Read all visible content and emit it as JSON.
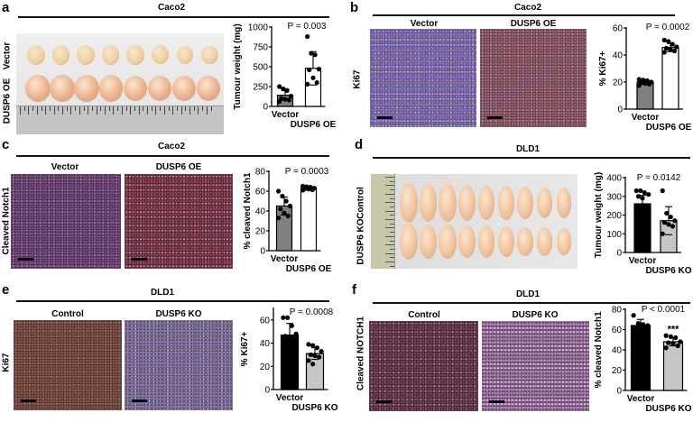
{
  "panels": {
    "a": {
      "label": "a",
      "title": "Caco2",
      "rows": [
        "Vector",
        "DUSP6 OE"
      ]
    },
    "b": {
      "label": "b",
      "title": "Caco2",
      "columns": [
        "Vector",
        "DUSP6 OE"
      ],
      "row": "Ki67"
    },
    "c": {
      "label": "c",
      "title": "Caco2",
      "columns": [
        "Vector",
        "DUSP6 OE"
      ],
      "row": "Cleaved Notch1"
    },
    "d": {
      "label": "d",
      "title": "DLD1",
      "rows": [
        "Control",
        "DUSP6 KO"
      ]
    },
    "e": {
      "label": "e",
      "title": "DLD1",
      "columns": [
        "Control",
        "DUSP6 KO"
      ],
      "row": "Ki67"
    },
    "f": {
      "label": "f",
      "title": "DLD1",
      "columns": [
        "Control",
        "DUSP6 KO"
      ],
      "row": "Cleaved NOTCH1"
    }
  },
  "colors": {
    "vector_bar_caco2": "#7f7f7f",
    "oe_bar": "#ffffff",
    "vector_bar_dld1": "#000000",
    "ko_bar": "#c6c6c6",
    "tumour": "#efbf98"
  },
  "chart_data": [
    {
      "type": "bar",
      "panel": "a",
      "ylabel": "Tumour weight (mg)",
      "categories": [
        "Vector",
        "DUSP6 OE"
      ],
      "values": [
        140,
        480
      ],
      "error": [
        60,
        210
      ],
      "points": [
        [
          250,
          220,
          200,
          130,
          100,
          90,
          80,
          60
        ],
        [
          880,
          670,
          650,
          470,
          460,
          360,
          300,
          280
        ]
      ],
      "bar_colors": [
        "#7f7f7f",
        "#ffffff"
      ],
      "ylim": [
        0,
        1000
      ],
      "yticks": [
        0,
        250,
        500,
        750,
        1000
      ],
      "annotation": "P = 0.003"
    },
    {
      "type": "bar",
      "panel": "b",
      "ylabel": "% Ki67+",
      "categories": [
        "Vector",
        "DUSP6 OE"
      ],
      "values": [
        20,
        45.5
      ],
      "error": [
        1.5,
        3
      ],
      "points": [
        [
          22,
          21.5,
          21,
          20,
          19.5,
          19,
          18.5,
          17.5
        ],
        [
          51,
          50,
          48,
          46,
          45,
          44,
          43,
          42
        ]
      ],
      "bar_colors": [
        "#7f7f7f",
        "#ffffff"
      ],
      "ylim": [
        0,
        60
      ],
      "yticks": [
        0,
        20,
        40,
        60
      ],
      "annotation": "P = 0.0002"
    },
    {
      "type": "bar",
      "panel": "c",
      "ylabel": "% cleaved Notch1",
      "categories": [
        "Vector",
        "DUSP6 OE"
      ],
      "values": [
        45,
        63
      ],
      "error": [
        9,
        1.5
      ],
      "points": [
        [
          60,
          55,
          50,
          45,
          42,
          38,
          35,
          33
        ],
        [
          65,
          64.5,
          64,
          63,
          62.5,
          62,
          61.5,
          61
        ]
      ],
      "bar_colors": [
        "#7f7f7f",
        "#ffffff"
      ],
      "ylim": [
        0,
        80
      ],
      "yticks": [
        0,
        20,
        40,
        60,
        80
      ],
      "annotation": "P = 0.0003"
    },
    {
      "type": "bar",
      "panel": "d",
      "ylabel": "Tumour weight (mg)",
      "categories": [
        "Vector",
        "DUSP6 KO"
      ],
      "values": [
        260,
        170
      ],
      "error": [
        45,
        75
      ],
      "points": [
        [
          330,
          330,
          320,
          310,
          300,
          290
        ],
        [
          330,
          210,
          190,
          170,
          160,
          150,
          140,
          100
        ]
      ],
      "bar_colors": [
        "#000000",
        "#c6c6c6"
      ],
      "ylim": [
        0,
        400
      ],
      "yticks": [
        0,
        100,
        200,
        300,
        400
      ],
      "annotation": "P = 0.0142"
    },
    {
      "type": "bar",
      "panel": "e",
      "ylabel": "% Ki67+",
      "categories": [
        "Vector",
        "DUSP6 KO"
      ],
      "values": [
        47,
        31
      ],
      "error": [
        10,
        5
      ],
      "points": [
        [
          62,
          62,
          55,
          48,
          46
        ],
        [
          39,
          38,
          36,
          33,
          30,
          29,
          28,
          25,
          22
        ]
      ],
      "bar_colors": [
        "#000000",
        "#c6c6c6"
      ],
      "ylim": [
        0,
        70
      ],
      "yticks": [
        0,
        20,
        40,
        60
      ],
      "annotation": "P = 0.0008"
    },
    {
      "type": "bar",
      "panel": "f",
      "ylabel": "% cleaved Notch1",
      "categories": [
        "Vector",
        "DUSP6 KO"
      ],
      "values": [
        64,
        48
      ],
      "error": [
        6,
        4
      ],
      "points": [
        [
          74,
          66,
          65,
          64,
          62
        ],
        [
          54,
          53,
          52,
          48,
          47,
          46,
          44,
          42
        ]
      ],
      "bar_colors": [
        "#000000",
        "#c6c6c6"
      ],
      "ylim": [
        0,
        80
      ],
      "yticks": [
        0,
        20,
        40,
        60,
        80
      ],
      "annotation": "P < 0.0001",
      "significance": "***"
    }
  ]
}
